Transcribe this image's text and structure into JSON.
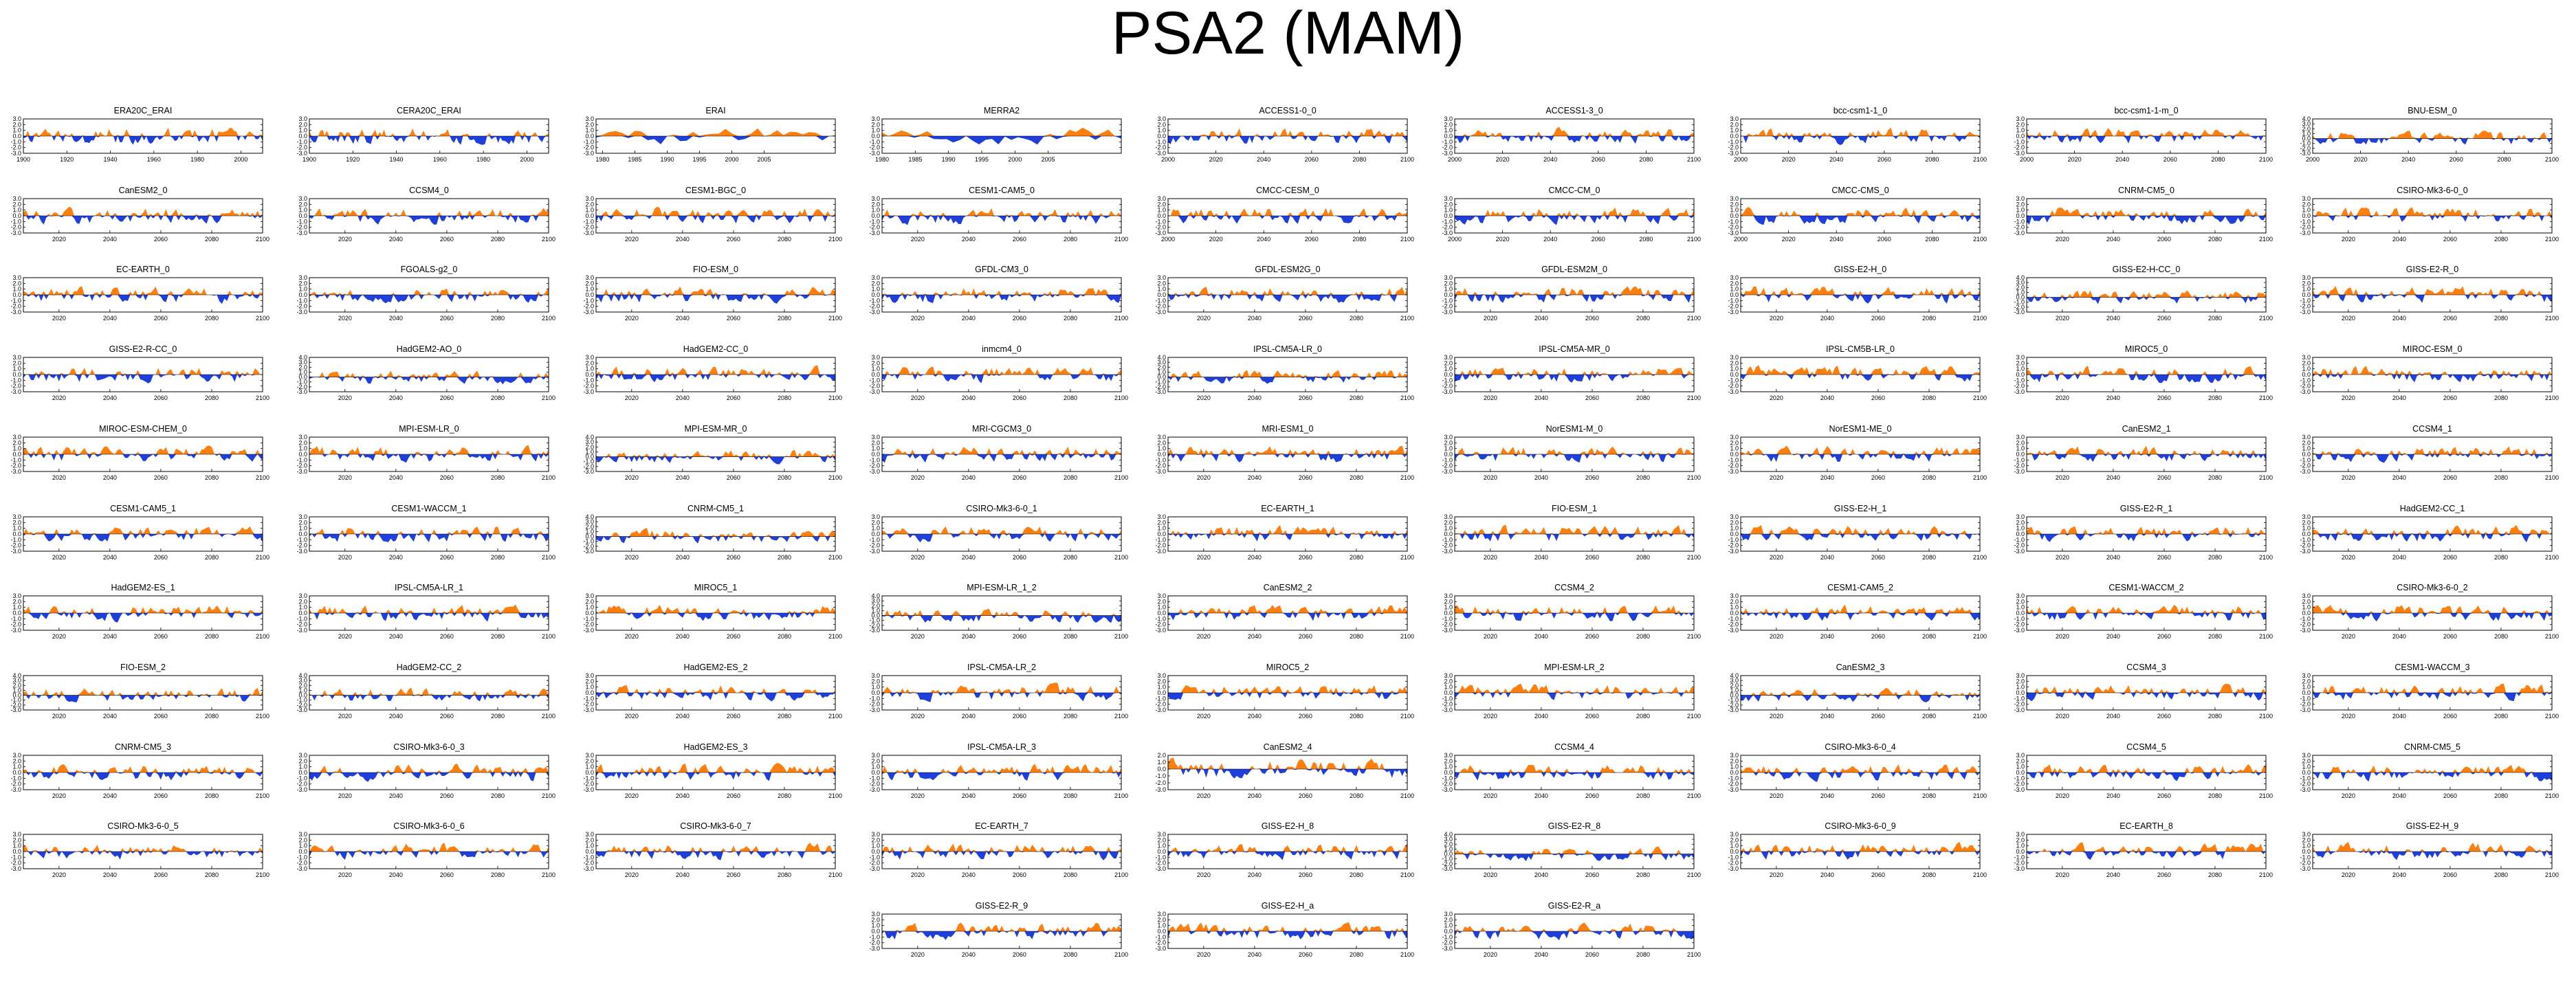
{
  "title": "PSA2 (MAM)",
  "colors": {
    "positive": "#ff7f0e",
    "negative": "#1f3fdc",
    "axis": "#000000"
  },
  "y_ticks": {
    "pm3": [
      "3.0",
      "2.0",
      "1.0",
      "0.0",
      "-1.0",
      "-2.0",
      "-3.0"
    ],
    "pm4": [
      "4.0",
      "3.0",
      "2.0",
      "1.0",
      "0.0",
      "-1.0",
      "-2.0",
      "-3.0",
      "-4.0"
    ],
    "p2m3": [
      "2.0",
      "1.0",
      "0.0",
      "-1.0",
      "-2.0",
      "-3.0"
    ],
    "p4m3": [
      "4.0",
      "3.0",
      "2.0",
      "1.0",
      "0.0",
      "-1.0",
      "-2.0",
      "-3.0"
    ]
  },
  "x_ticks": {
    "c20": [
      "1900",
      "1920",
      "1940",
      "1960",
      "1980",
      "2000"
    ],
    "erai": [
      "1980",
      "1985",
      "1990",
      "1995",
      "2000",
      "2005"
    ],
    "hist_1900": [
      "1900",
      "1920",
      "1940",
      "1960",
      "1980",
      "2000"
    ],
    "fut2000": [
      "2000",
      "2020",
      "2040",
      "2060",
      "2080",
      "2100"
    ],
    "fut": [
      "2020",
      "2040",
      "2060",
      "2080",
      "2100"
    ]
  },
  "chart_data": {
    "type": "area",
    "description_of_values": "Each panel is an index time series; values above zero are filled orange, below zero filled blue. Per-panel series are synthesized approximations of the depicted wiggles.",
    "panels": [
      {
        "name": "ERA20C_ERAI",
        "xk": "c20",
        "x0": 1900,
        "x1": 2010,
        "yk": "pm3"
      },
      {
        "name": "CERA20C_ERAI",
        "xk": "c20",
        "x0": 1900,
        "x1": 2010,
        "yk": "pm3"
      },
      {
        "name": "ERAI",
        "xk": "erai",
        "x0": 1979,
        "x1": 2016,
        "yk": "pm3"
      },
      {
        "name": "MERRA2",
        "xk": "erai",
        "x0": 1980,
        "x1": 2016,
        "yk": "pm3"
      },
      {
        "name": "ACCESS1-0_0",
        "xk": "fut2000",
        "x0": 2000,
        "x1": 2100,
        "yk": "pm3"
      },
      {
        "name": "ACCESS1-3_0",
        "xk": "fut2000",
        "x0": 2000,
        "x1": 2100,
        "yk": "pm3"
      },
      {
        "name": "bcc-csm1-1_0",
        "xk": "fut2000",
        "x0": 2000,
        "x1": 2100,
        "yk": "pm3"
      },
      {
        "name": "bcc-csm1-1-m_0",
        "xk": "fut2000",
        "x0": 2000,
        "x1": 2100,
        "yk": "pm3"
      },
      {
        "name": "BNU-ESM_0",
        "xk": "fut2000",
        "x0": 2000,
        "x1": 2100,
        "yk": "p4m3"
      },
      {
        "name": "CanESM2_0",
        "xk": "fut",
        "x0": 2006,
        "x1": 2100,
        "yk": "pm3"
      },
      {
        "name": "CCSM4_0",
        "xk": "fut",
        "x0": 2006,
        "x1": 2100,
        "yk": "pm3"
      },
      {
        "name": "CESM1-BGC_0",
        "xk": "fut",
        "x0": 2006,
        "x1": 2100,
        "yk": "pm3"
      },
      {
        "name": "CESM1-CAM5_0",
        "xk": "fut",
        "x0": 2006,
        "x1": 2100,
        "yk": "pm3"
      },
      {
        "name": "CMCC-CESM_0",
        "xk": "fut2000",
        "x0": 2000,
        "x1": 2100,
        "yk": "pm3"
      },
      {
        "name": "CMCC-CM_0",
        "xk": "fut2000",
        "x0": 2000,
        "x1": 2100,
        "yk": "pm3"
      },
      {
        "name": "CMCC-CMS_0",
        "xk": "fut2000",
        "x0": 2000,
        "x1": 2100,
        "yk": "pm3"
      },
      {
        "name": "CNRM-CM5_0",
        "xk": "fut",
        "x0": 2006,
        "x1": 2100,
        "yk": "pm3"
      },
      {
        "name": "CSIRO-Mk3-6-0_0",
        "xk": "fut",
        "x0": 2006,
        "x1": 2100,
        "yk": "pm3"
      },
      {
        "name": "EC-EARTH_0",
        "xk": "fut",
        "x0": 2006,
        "x1": 2100,
        "yk": "pm3"
      },
      {
        "name": "FGOALS-g2_0",
        "xk": "fut",
        "x0": 2006,
        "x1": 2100,
        "yk": "pm3"
      },
      {
        "name": "FIO-ESM_0",
        "xk": "fut",
        "x0": 2006,
        "x1": 2100,
        "yk": "pm3"
      },
      {
        "name": "GFDL-CM3_0",
        "xk": "fut",
        "x0": 2006,
        "x1": 2100,
        "yk": "pm3"
      },
      {
        "name": "GFDL-ESM2G_0",
        "xk": "fut",
        "x0": 2006,
        "x1": 2100,
        "yk": "pm3"
      },
      {
        "name": "GFDL-ESM2M_0",
        "xk": "fut",
        "x0": 2006,
        "x1": 2100,
        "yk": "pm3"
      },
      {
        "name": "GISS-E2-H_0",
        "xk": "fut",
        "x0": 2006,
        "x1": 2100,
        "yk": "pm3"
      },
      {
        "name": "GISS-E2-H-CC_0",
        "xk": "fut",
        "x0": 2006,
        "x1": 2100,
        "yk": "p4m3"
      },
      {
        "name": "GISS-E2-R_0",
        "xk": "fut",
        "x0": 2006,
        "x1": 2100,
        "yk": "pm3"
      },
      {
        "name": "GISS-E2-R-CC_0",
        "xk": "fut",
        "x0": 2006,
        "x1": 2100,
        "yk": "pm3"
      },
      {
        "name": "HadGEM2-AO_0",
        "xk": "fut",
        "x0": 2006,
        "x1": 2100,
        "yk": "p4m3"
      },
      {
        "name": "HadGEM2-CC_0",
        "xk": "fut",
        "x0": 2006,
        "x1": 2100,
        "yk": "pm3"
      },
      {
        "name": "inmcm4_0",
        "xk": "fut",
        "x0": 2006,
        "x1": 2100,
        "yk": "pm3"
      },
      {
        "name": "IPSL-CM5A-LR_0",
        "xk": "fut",
        "x0": 2006,
        "x1": 2100,
        "yk": "p4m3"
      },
      {
        "name": "IPSL-CM5A-MR_0",
        "xk": "fut",
        "x0": 2006,
        "x1": 2100,
        "yk": "pm3"
      },
      {
        "name": "IPSL-CM5B-LR_0",
        "xk": "fut",
        "x0": 2006,
        "x1": 2100,
        "yk": "pm3"
      },
      {
        "name": "MIROC5_0",
        "xk": "fut",
        "x0": 2006,
        "x1": 2100,
        "yk": "pm3"
      },
      {
        "name": "MIROC-ESM_0",
        "xk": "fut",
        "x0": 2006,
        "x1": 2100,
        "yk": "pm3"
      },
      {
        "name": "MIROC-ESM-CHEM_0",
        "xk": "fut",
        "x0": 2006,
        "x1": 2100,
        "yk": "pm3"
      },
      {
        "name": "MPI-ESM-LR_0",
        "xk": "fut",
        "x0": 2006,
        "x1": 2100,
        "yk": "pm3"
      },
      {
        "name": "MPI-ESM-MR_0",
        "xk": "fut",
        "x0": 2006,
        "x1": 2100,
        "yk": "p4m3"
      },
      {
        "name": "MRI-CGCM3_0",
        "xk": "fut",
        "x0": 2006,
        "x1": 2100,
        "yk": "pm3"
      },
      {
        "name": "MRI-ESM1_0",
        "xk": "fut",
        "x0": 2006,
        "x1": 2100,
        "yk": "pm3"
      },
      {
        "name": "NorESM1-M_0",
        "xk": "fut",
        "x0": 2006,
        "x1": 2100,
        "yk": "pm3"
      },
      {
        "name": "NorESM1-ME_0",
        "xk": "fut",
        "x0": 2006,
        "x1": 2100,
        "yk": "pm3"
      },
      {
        "name": "CanESM2_1",
        "xk": "fut",
        "x0": 2006,
        "x1": 2100,
        "yk": "pm3"
      },
      {
        "name": "CCSM4_1",
        "xk": "fut",
        "x0": 2006,
        "x1": 2100,
        "yk": "pm3"
      },
      {
        "name": "CESM1-CAM5_1",
        "xk": "fut",
        "x0": 2006,
        "x1": 2100,
        "yk": "pm3"
      },
      {
        "name": "CESM1-WACCM_1",
        "xk": "fut",
        "x0": 2006,
        "x1": 2100,
        "yk": "pm3"
      },
      {
        "name": "CNRM-CM5_1",
        "xk": "fut",
        "x0": 2006,
        "x1": 2100,
        "yk": "p4m3"
      },
      {
        "name": "CSIRO-Mk3-6-0_1",
        "xk": "fut",
        "x0": 2006,
        "x1": 2100,
        "yk": "pm3"
      },
      {
        "name": "EC-EARTH_1",
        "xk": "fut",
        "x0": 2006,
        "x1": 2100,
        "yk": "pm3"
      },
      {
        "name": "FIO-ESM_1",
        "xk": "fut",
        "x0": 2006,
        "x1": 2100,
        "yk": "pm3"
      },
      {
        "name": "GISS-E2-H_1",
        "xk": "fut",
        "x0": 2006,
        "x1": 2100,
        "yk": "pm3"
      },
      {
        "name": "GISS-E2-R_1",
        "xk": "fut",
        "x0": 2006,
        "x1": 2100,
        "yk": "pm3"
      },
      {
        "name": "HadGEM2-CC_1",
        "xk": "fut",
        "x0": 2006,
        "x1": 2100,
        "yk": "pm3"
      },
      {
        "name": "HadGEM2-ES_1",
        "xk": "fut",
        "x0": 2006,
        "x1": 2100,
        "yk": "pm3"
      },
      {
        "name": "IPSL-CM5A-LR_1",
        "xk": "fut",
        "x0": 2006,
        "x1": 2100,
        "yk": "pm3"
      },
      {
        "name": "MIROC5_1",
        "xk": "fut",
        "x0": 2006,
        "x1": 2100,
        "yk": "pm3"
      },
      {
        "name": "MPI-ESM-LR_1_2",
        "xk": "fut",
        "x0": 2006,
        "x1": 2100,
        "yk": "p4m3"
      },
      {
        "name": "CanESM2_2",
        "xk": "fut",
        "x0": 2006,
        "x1": 2100,
        "yk": "pm3"
      },
      {
        "name": "CCSM4_2",
        "xk": "fut",
        "x0": 2006,
        "x1": 2100,
        "yk": "pm3"
      },
      {
        "name": "CESM1-CAM5_2",
        "xk": "fut",
        "x0": 2006,
        "x1": 2100,
        "yk": "pm3"
      },
      {
        "name": "CESM1-WACCM_2",
        "xk": "fut",
        "x0": 2006,
        "x1": 2100,
        "yk": "pm3"
      },
      {
        "name": "CSIRO-Mk3-6-0_2",
        "xk": "fut",
        "x0": 2006,
        "x1": 2100,
        "yk": "pm3"
      },
      {
        "name": "FIO-ESM_2",
        "xk": "fut",
        "x0": 2006,
        "x1": 2100,
        "yk": "p4m3"
      },
      {
        "name": "HadGEM2-CC_2",
        "xk": "fut",
        "x0": 2006,
        "x1": 2100,
        "yk": "p4m3"
      },
      {
        "name": "HadGEM2-ES_2",
        "xk": "fut",
        "x0": 2006,
        "x1": 2100,
        "yk": "pm3"
      },
      {
        "name": "IPSL-CM5A-LR_2",
        "xk": "fut",
        "x0": 2006,
        "x1": 2100,
        "yk": "pm3"
      },
      {
        "name": "MIROC5_2",
        "xk": "fut",
        "x0": 2006,
        "x1": 2100,
        "yk": "pm3"
      },
      {
        "name": "MPI-ESM-LR_2",
        "xk": "fut",
        "x0": 2006,
        "x1": 2100,
        "yk": "pm3"
      },
      {
        "name": "CanESM2_3",
        "xk": "fut",
        "x0": 2006,
        "x1": 2100,
        "yk": "p4m3"
      },
      {
        "name": "CCSM4_3",
        "xk": "fut",
        "x0": 2006,
        "x1": 2100,
        "yk": "pm3"
      },
      {
        "name": "CESM1-WACCM_3",
        "xk": "fut",
        "x0": 2006,
        "x1": 2100,
        "yk": "pm3"
      },
      {
        "name": "CNRM-CM5_3",
        "xk": "fut",
        "x0": 2006,
        "x1": 2100,
        "yk": "pm3"
      },
      {
        "name": "CSIRO-Mk3-6-0_3",
        "xk": "fut",
        "x0": 2006,
        "x1": 2100,
        "yk": "pm3"
      },
      {
        "name": "HadGEM2-ES_3",
        "xk": "fut",
        "x0": 2006,
        "x1": 2100,
        "yk": "pm3"
      },
      {
        "name": "IPSL-CM5A-LR_3",
        "xk": "fut",
        "x0": 2006,
        "x1": 2100,
        "yk": "pm3"
      },
      {
        "name": "CanESM2_4",
        "xk": "fut",
        "x0": 2006,
        "x1": 2100,
        "yk": "p2m3"
      },
      {
        "name": "CCSM4_4",
        "xk": "fut",
        "x0": 2006,
        "x1": 2100,
        "yk": "pm3"
      },
      {
        "name": "CSIRO-Mk3-6-0_4",
        "xk": "fut",
        "x0": 2006,
        "x1": 2100,
        "yk": "pm3"
      },
      {
        "name": "CCSM4_5",
        "xk": "fut",
        "x0": 2006,
        "x1": 2100,
        "yk": "pm3"
      },
      {
        "name": "CNRM-CM5_5",
        "xk": "fut",
        "x0": 2006,
        "x1": 2100,
        "yk": "pm3"
      },
      {
        "name": "CSIRO-Mk3-6-0_5",
        "xk": "fut",
        "x0": 2006,
        "x1": 2100,
        "yk": "pm3"
      },
      {
        "name": "CSIRO-Mk3-6-0_6",
        "xk": "fut",
        "x0": 2006,
        "x1": 2100,
        "yk": "pm3"
      },
      {
        "name": "CSIRO-Mk3-6-0_7",
        "xk": "fut",
        "x0": 2006,
        "x1": 2100,
        "yk": "pm3"
      },
      {
        "name": "EC-EARTH_7",
        "xk": "fut",
        "x0": 2006,
        "x1": 2100,
        "yk": "pm3"
      },
      {
        "name": "GISS-E2-H_8",
        "xk": "fut",
        "x0": 2006,
        "x1": 2100,
        "yk": "pm3"
      },
      {
        "name": "GISS-E2-R_8",
        "xk": "fut",
        "x0": 2006,
        "x1": 2100,
        "yk": "p4m3"
      },
      {
        "name": "CSIRO-Mk3-6-0_9",
        "xk": "fut",
        "x0": 2006,
        "x1": 2100,
        "yk": "pm3"
      },
      {
        "name": "EC-EARTH_8",
        "xk": "fut",
        "x0": 2006,
        "x1": 2100,
        "yk": "pm3"
      },
      {
        "name": "GISS-E2-H_9",
        "xk": "fut",
        "x0": 2006,
        "x1": 2100,
        "yk": "pm3"
      },
      {
        "name": "GISS-E2-R_9",
        "xk": "fut",
        "x0": 2006,
        "x1": 2100,
        "yk": "pm3"
      },
      {
        "name": "GISS-E2-H_a",
        "xk": "fut",
        "x0": 2006,
        "x1": 2100,
        "yk": "pm3"
      },
      {
        "name": "GISS-E2-R_a",
        "xk": "fut",
        "x0": 2006,
        "x1": 2100,
        "yk": "pm3"
      }
    ]
  }
}
